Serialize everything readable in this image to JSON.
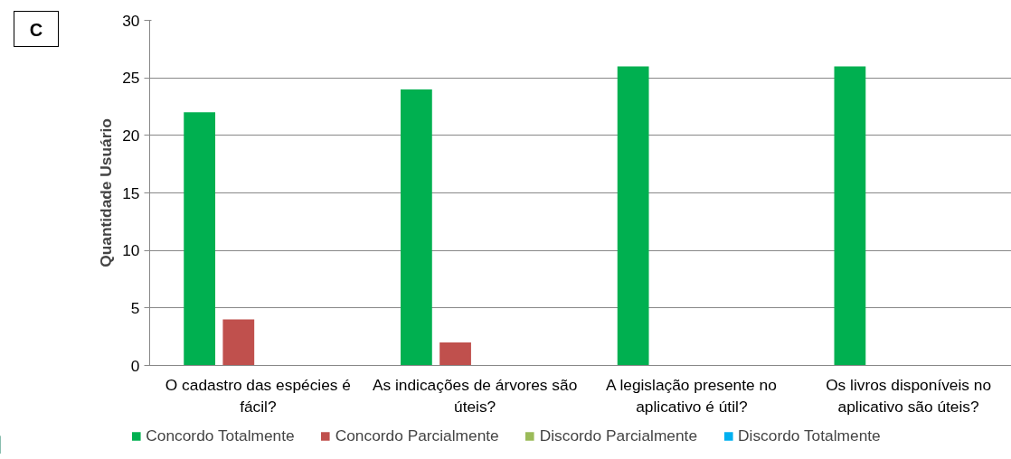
{
  "chart_data": {
    "type": "bar",
    "ylabel": "Quantidade Usuário",
    "annotations": [
      "C"
    ],
    "categories": [
      "O cadastro das espécies é fácil?",
      "As indicações de árvores são úteis?",
      "A legislação presente no aplicativo é útil?",
      "Os livros disponíveis no aplicativo são úteis?"
    ],
    "series": [
      {
        "name": "Concordo Totalmente",
        "color": "#00b050",
        "values": [
          22,
          24,
          26,
          26
        ]
      },
      {
        "name": "Concordo Parcialmente",
        "color": "#c0504d",
        "values": [
          4,
          2,
          0,
          0
        ]
      },
      {
        "name": "Discordo Parcialmente",
        "color": "#9bbb59",
        "values": [
          0,
          0,
          0,
          0
        ]
      },
      {
        "name": "Discordo Totalmente",
        "color": "#00b0f0",
        "values": [
          0,
          0,
          0,
          0
        ]
      }
    ],
    "ylim": [
      0,
      30
    ],
    "yticks": [
      0,
      5,
      10,
      15,
      20,
      25,
      30
    ],
    "grid": "y",
    "legend": "bottom"
  }
}
